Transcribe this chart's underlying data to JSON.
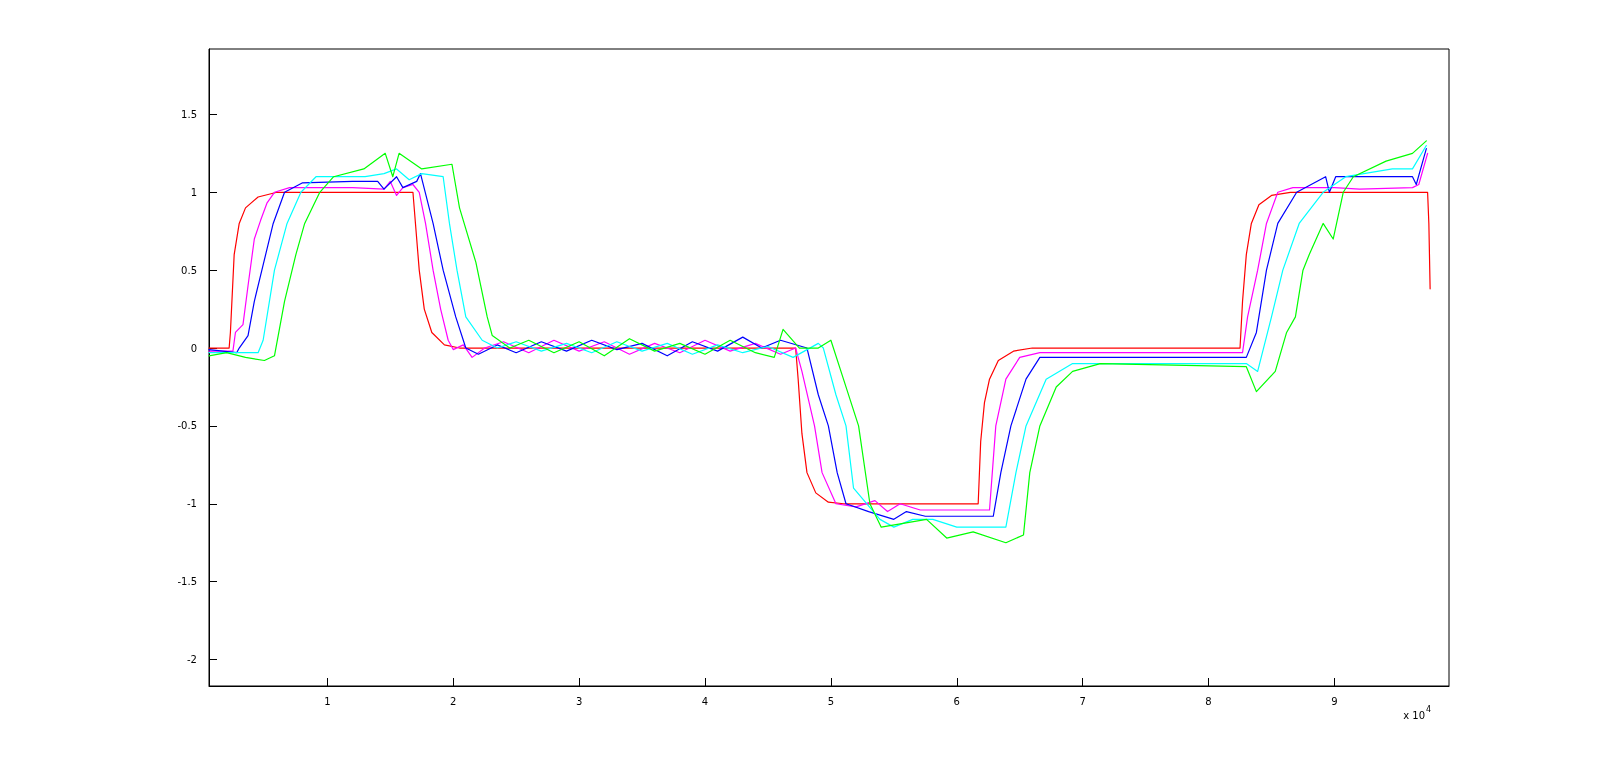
{
  "chart_data": {
    "type": "line",
    "xlim": [
      0.06,
      9.91
    ],
    "ylim": [
      -2.17,
      1.92
    ],
    "xticks": [
      1,
      2,
      3,
      4,
      5,
      6,
      7,
      8,
      9
    ],
    "yticks": [
      -2,
      -1.5,
      -1,
      -0.5,
      0,
      0.5,
      1,
      1.5
    ],
    "grid": false,
    "marker": "none",
    "line_style": "solid",
    "annotations": [
      "x 10$^{4}$"
    ],
    "series": [
      {
        "color": "#ff0000",
        "x": [
          0.06,
          0.22,
          0.23,
          0.26,
          0.3,
          0.35,
          0.45,
          0.6,
          1.68,
          1.7,
          1.73,
          1.77,
          1.83,
          1.93,
          2.05,
          4.72,
          4.74,
          4.77,
          4.81,
          4.88,
          4.98,
          5.1,
          6.17,
          6.19,
          6.22,
          6.26,
          6.33,
          6.45,
          6.6,
          8.25,
          8.27,
          8.3,
          8.34,
          8.4,
          8.5,
          8.65,
          9.74,
          9.75,
          9.76
        ],
        "values": [
          0,
          0,
          0.1,
          0.6,
          0.8,
          0.9,
          0.97,
          1,
          1,
          0.8,
          0.5,
          0.25,
          0.1,
          0.02,
          0,
          0,
          -0.2,
          -0.55,
          -0.8,
          -0.93,
          -0.99,
          -1,
          -1,
          -0.6,
          -0.35,
          -0.2,
          -0.08,
          -0.02,
          0,
          0,
          0.3,
          0.6,
          0.8,
          0.92,
          0.98,
          1,
          1,
          0.8,
          0.38
        ]
      },
      {
        "color": "#ff00ff",
        "x": [
          0.06,
          0.25,
          0.27,
          0.33,
          0.37,
          0.42,
          0.47,
          0.52,
          0.58,
          0.7,
          1.2,
          1.45,
          1.5,
          1.55,
          1.6,
          1.68,
          1.73,
          1.78,
          1.84,
          1.9,
          1.96,
          2.0,
          2.08,
          2.15,
          2.25,
          2.4,
          2.6,
          2.8,
          3.0,
          3.2,
          3.4,
          3.6,
          3.8,
          4.0,
          4.2,
          4.4,
          4.6,
          4.72,
          4.77,
          4.87,
          4.93,
          5.04,
          5.2,
          5.35,
          5.45,
          5.55,
          5.71,
          6.26,
          6.31,
          6.39,
          6.5,
          6.66,
          8.27,
          8.31,
          8.39,
          8.46,
          8.55,
          8.67,
          9.0,
          9.2,
          9.62,
          9.67,
          9.74
        ],
        "values": [
          -0.02,
          -0.02,
          0.1,
          0.15,
          0.4,
          0.7,
          0.82,
          0.93,
          1.0,
          1.03,
          1.03,
          1.02,
          1.07,
          0.98,
          1.03,
          1.05,
          1.0,
          0.8,
          0.5,
          0.25,
          0.05,
          -0.01,
          0.02,
          -0.06,
          0.0,
          0.04,
          -0.03,
          0.05,
          -0.02,
          0.04,
          -0.04,
          0.03,
          -0.03,
          0.05,
          -0.02,
          0.03,
          -0.04,
          0.0,
          -0.15,
          -0.5,
          -0.8,
          -1.0,
          -1.02,
          -0.98,
          -1.05,
          -1.0,
          -1.04,
          -1.04,
          -0.5,
          -0.2,
          -0.06,
          -0.03,
          -0.03,
          0.2,
          0.5,
          0.8,
          1.0,
          1.03,
          1.03,
          1.02,
          1.03,
          1.05,
          1.25
        ]
      },
      {
        "color": "#0000ff",
        "x": [
          0.06,
          0.28,
          0.3,
          0.37,
          0.42,
          0.48,
          0.57,
          0.66,
          0.8,
          1.2,
          1.4,
          1.45,
          1.55,
          1.6,
          1.71,
          1.74,
          1.84,
          1.92,
          2.02,
          2.1,
          2.2,
          2.35,
          2.5,
          2.7,
          2.9,
          3.1,
          3.3,
          3.5,
          3.7,
          3.9,
          4.1,
          4.3,
          4.45,
          4.6,
          4.81,
          4.9,
          4.98,
          5.05,
          5.12,
          5.3,
          5.5,
          5.6,
          5.75,
          6.29,
          6.35,
          6.43,
          6.55,
          6.66,
          8.3,
          8.38,
          8.46,
          8.55,
          8.7,
          8.93,
          8.96,
          9.01,
          9.3,
          9.62,
          9.65,
          9.73
        ],
        "values": [
          -0.01,
          -0.03,
          0.0,
          0.08,
          0.3,
          0.5,
          0.8,
          1.0,
          1.06,
          1.07,
          1.07,
          1.02,
          1.1,
          1.03,
          1.07,
          1.12,
          0.8,
          0.5,
          0.2,
          0.0,
          -0.04,
          0.02,
          -0.03,
          0.04,
          -0.02,
          0.05,
          -0.01,
          0.03,
          -0.05,
          0.04,
          -0.02,
          0.07,
          0.0,
          0.05,
          0.0,
          -0.3,
          -0.5,
          -0.8,
          -1.0,
          -1.05,
          -1.1,
          -1.05,
          -1.08,
          -1.08,
          -0.8,
          -0.5,
          -0.2,
          -0.06,
          -0.06,
          0.1,
          0.5,
          0.8,
          1.0,
          1.1,
          1.0,
          1.1,
          1.1,
          1.1,
          1.05,
          1.28
        ]
      },
      {
        "color": "#00ffff",
        "x": [
          0.06,
          0.45,
          0.49,
          0.58,
          0.68,
          0.79,
          0.91,
          1.3,
          1.45,
          1.55,
          1.65,
          1.75,
          1.92,
          1.97,
          2.03,
          2.1,
          2.23,
          2.35,
          2.5,
          2.7,
          2.9,
          3.1,
          3.3,
          3.5,
          3.7,
          3.9,
          4.1,
          4.3,
          4.5,
          4.7,
          4.9,
          4.94,
          5.04,
          5.12,
          5.18,
          5.39,
          5.5,
          5.65,
          5.81,
          6.0,
          6.39,
          6.47,
          6.55,
          6.71,
          6.92,
          8.3,
          8.39,
          8.5,
          8.59,
          8.72,
          8.91,
          9.09,
          9.46,
          9.62,
          9.73
        ],
        "values": [
          -0.03,
          -0.03,
          0.05,
          0.5,
          0.8,
          1.0,
          1.1,
          1.1,
          1.12,
          1.15,
          1.08,
          1.12,
          1.1,
          0.8,
          0.5,
          0.2,
          0.05,
          0.0,
          0.04,
          -0.02,
          0.03,
          -0.03,
          0.04,
          -0.02,
          0.03,
          -0.04,
          0.02,
          -0.03,
          0.01,
          -0.06,
          0.03,
          0.0,
          -0.3,
          -0.5,
          -0.9,
          -1.1,
          -1.15,
          -1.1,
          -1.1,
          -1.15,
          -1.15,
          -0.8,
          -0.5,
          -0.2,
          -0.1,
          -0.1,
          -0.15,
          0.2,
          0.5,
          0.8,
          1.0,
          1.1,
          1.15,
          1.15,
          1.3
        ]
      },
      {
        "color": "#00ff00",
        "x": [
          0.06,
          0.2,
          0.35,
          0.5,
          0.58,
          0.66,
          0.75,
          0.82,
          0.94,
          1.05,
          1.29,
          1.46,
          1.52,
          1.57,
          1.75,
          1.99,
          2.05,
          2.18,
          2.27,
          2.31,
          2.45,
          2.6,
          2.8,
          3.0,
          3.2,
          3.4,
          3.6,
          3.8,
          4.0,
          4.2,
          4.4,
          4.55,
          4.62,
          4.75,
          4.9,
          5.0,
          5.1,
          5.22,
          5.31,
          5.4,
          5.76,
          5.92,
          6.13,
          6.39,
          6.53,
          6.58,
          6.66,
          6.79,
          6.92,
          7.14,
          8.3,
          8.38,
          8.53,
          8.62,
          8.69,
          8.75,
          8.8,
          8.91,
          8.99,
          9.07,
          9.15,
          9.41,
          9.62,
          9.73
        ],
        "values": [
          -0.05,
          -0.03,
          -0.06,
          -0.08,
          -0.05,
          0.3,
          0.6,
          0.8,
          1.0,
          1.1,
          1.15,
          1.25,
          1.1,
          1.25,
          1.15,
          1.18,
          0.9,
          0.55,
          0.2,
          0.08,
          0.0,
          0.05,
          -0.03,
          0.04,
          -0.05,
          0.06,
          -0.02,
          0.03,
          -0.04,
          0.05,
          -0.03,
          -0.06,
          0.12,
          0.0,
          0.0,
          0.05,
          -0.2,
          -0.5,
          -1.0,
          -1.15,
          -1.1,
          -1.22,
          -1.18,
          -1.25,
          -1.2,
          -0.8,
          -0.5,
          -0.25,
          -0.15,
          -0.1,
          -0.12,
          -0.28,
          -0.15,
          0.1,
          0.2,
          0.5,
          0.6,
          0.8,
          0.7,
          1.0,
          1.1,
          1.2,
          1.25,
          1.33
        ]
      }
    ]
  }
}
